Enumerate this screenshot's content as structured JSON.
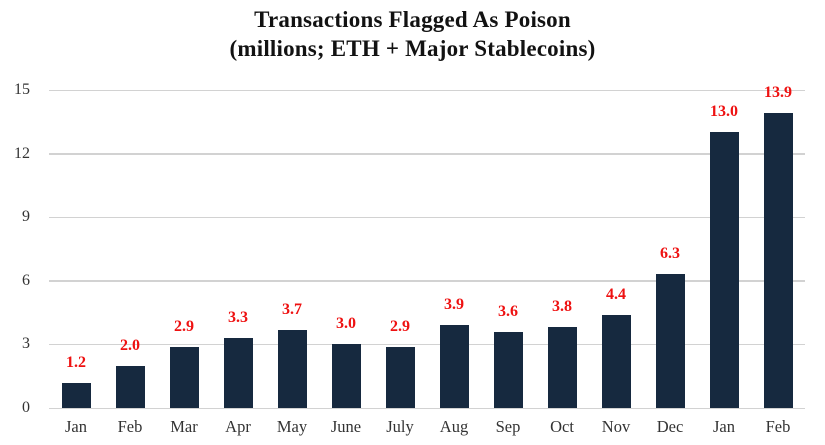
{
  "chart_data": {
    "type": "bar",
    "title": "Transactions Flagged As Poison",
    "subtitle": "(millions; ETH + Major Stablecoins)",
    "categories": [
      "Jan",
      "Feb",
      "Mar",
      "Apr",
      "May",
      "June",
      "July",
      "Aug",
      "Sep",
      "Oct",
      "Nov",
      "Dec",
      "Jan",
      "Feb"
    ],
    "values": [
      1.2,
      2.0,
      2.9,
      3.3,
      3.7,
      3.0,
      2.9,
      3.9,
      3.6,
      3.8,
      4.4,
      6.3,
      13.0,
      13.9
    ],
    "value_labels": [
      "1.2",
      "2.0",
      "2.9",
      "3.3",
      "3.7",
      "3.0",
      "2.9",
      "3.9",
      "3.6",
      "3.8",
      "4.4",
      "6.3",
      "13.0",
      "13.9"
    ],
    "y_ticks": [
      0,
      3,
      6,
      9,
      12,
      15
    ],
    "ylim": [
      0,
      15
    ],
    "xlabel": "",
    "ylabel": "",
    "grid": "horizontal",
    "legend_position": "none",
    "colors": {
      "bar": "#16293F",
      "value_label": "#EE1111",
      "gridline": "#D2D2D2",
      "axis_label": "#333333",
      "title": "#121212",
      "background": "#FFFFFF"
    }
  }
}
